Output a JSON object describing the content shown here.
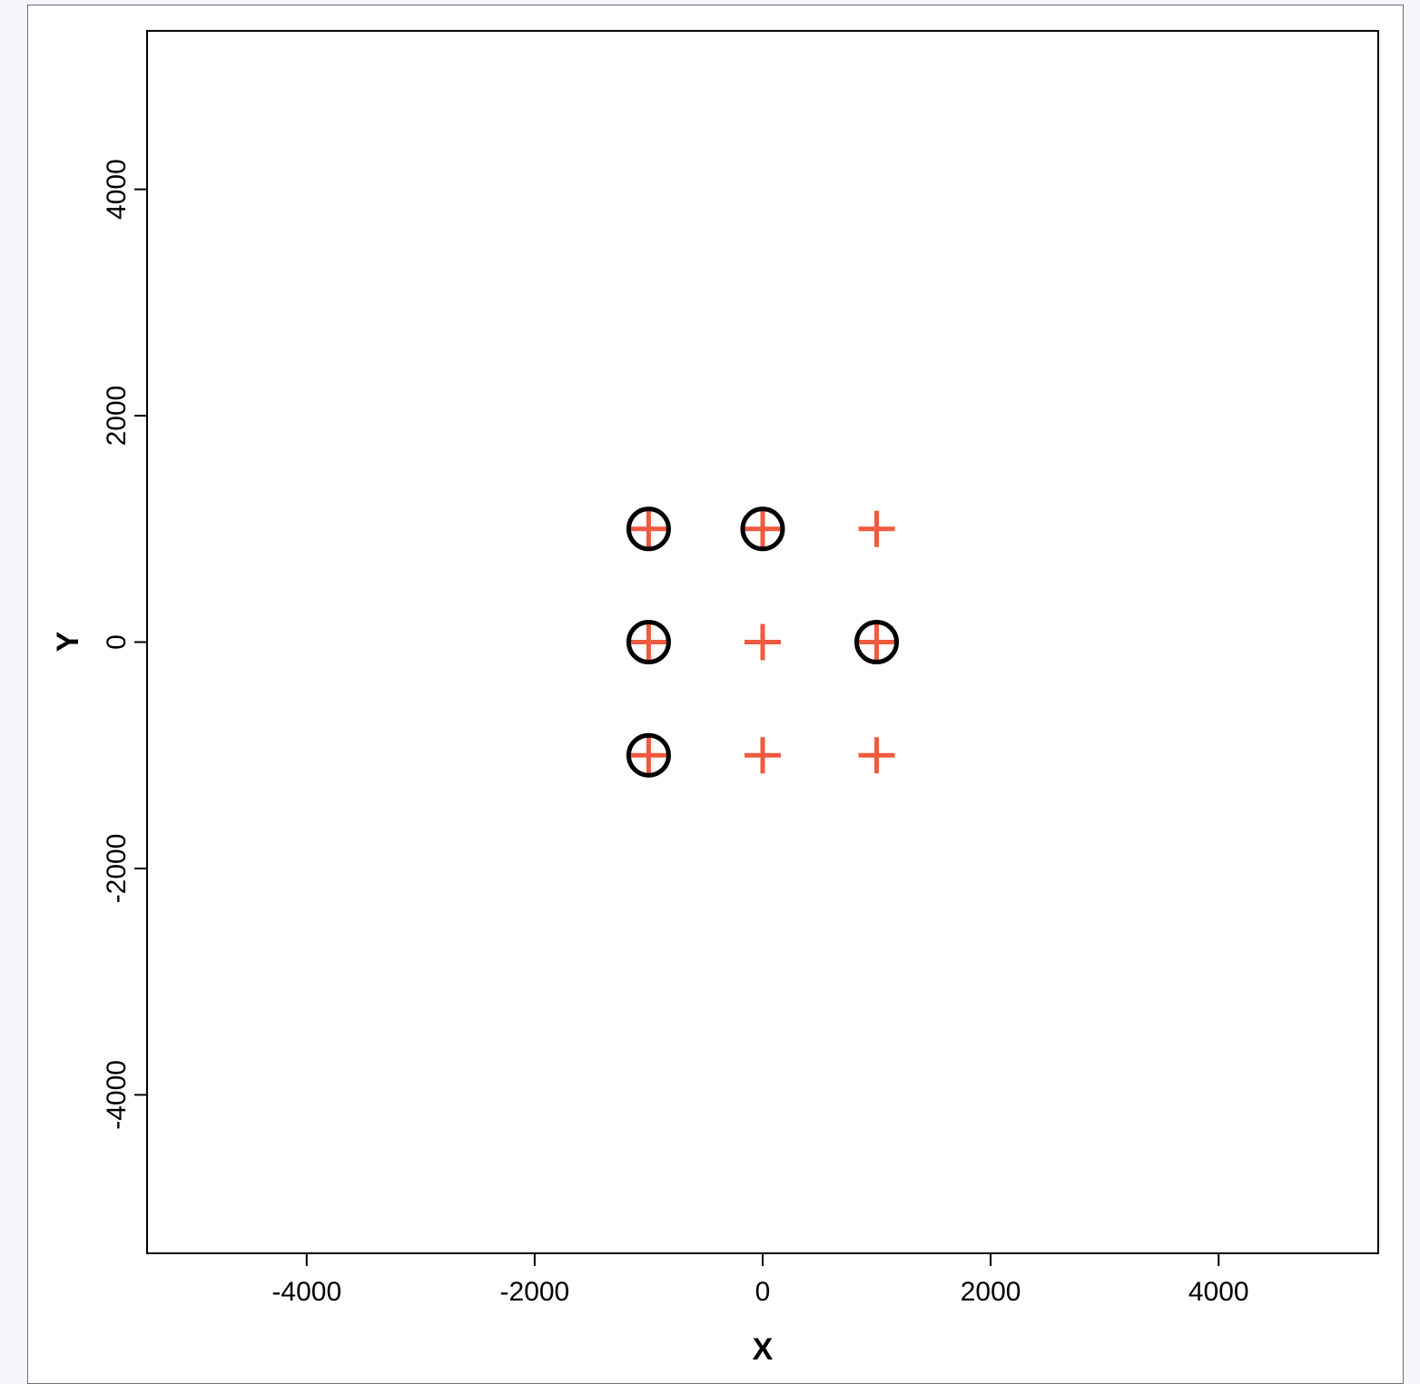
{
  "chart_data": {
    "type": "scatter",
    "title": "",
    "xlabel": "X",
    "ylabel": "Y",
    "xlim": [
      -5400,
      5400
    ],
    "ylim": [
      -5400,
      5400
    ],
    "xticks": [
      -4000,
      -2000,
      0,
      2000,
      4000
    ],
    "yticks": [
      -4000,
      -2000,
      0,
      2000,
      4000
    ],
    "xtick_labels": [
      "-4000",
      "-2000",
      "0",
      "2000",
      "4000"
    ],
    "ytick_labels": [
      "-4000",
      "-2000",
      "0",
      "2000",
      "4000"
    ],
    "grid": false,
    "series": [
      {
        "marker": "plus",
        "color": "#f05a3e",
        "x": [
          -1000,
          0,
          1000,
          -1000,
          0,
          1000,
          -1000,
          0,
          1000
        ],
        "y": [
          1000,
          1000,
          1000,
          0,
          0,
          0,
          -1000,
          -1000,
          -1000
        ]
      },
      {
        "marker": "circle",
        "color": "#000000",
        "x": [
          -1000,
          0,
          -1000,
          1000,
          -1000
        ],
        "y": [
          1000,
          1000,
          0,
          0,
          -1000
        ]
      }
    ]
  }
}
